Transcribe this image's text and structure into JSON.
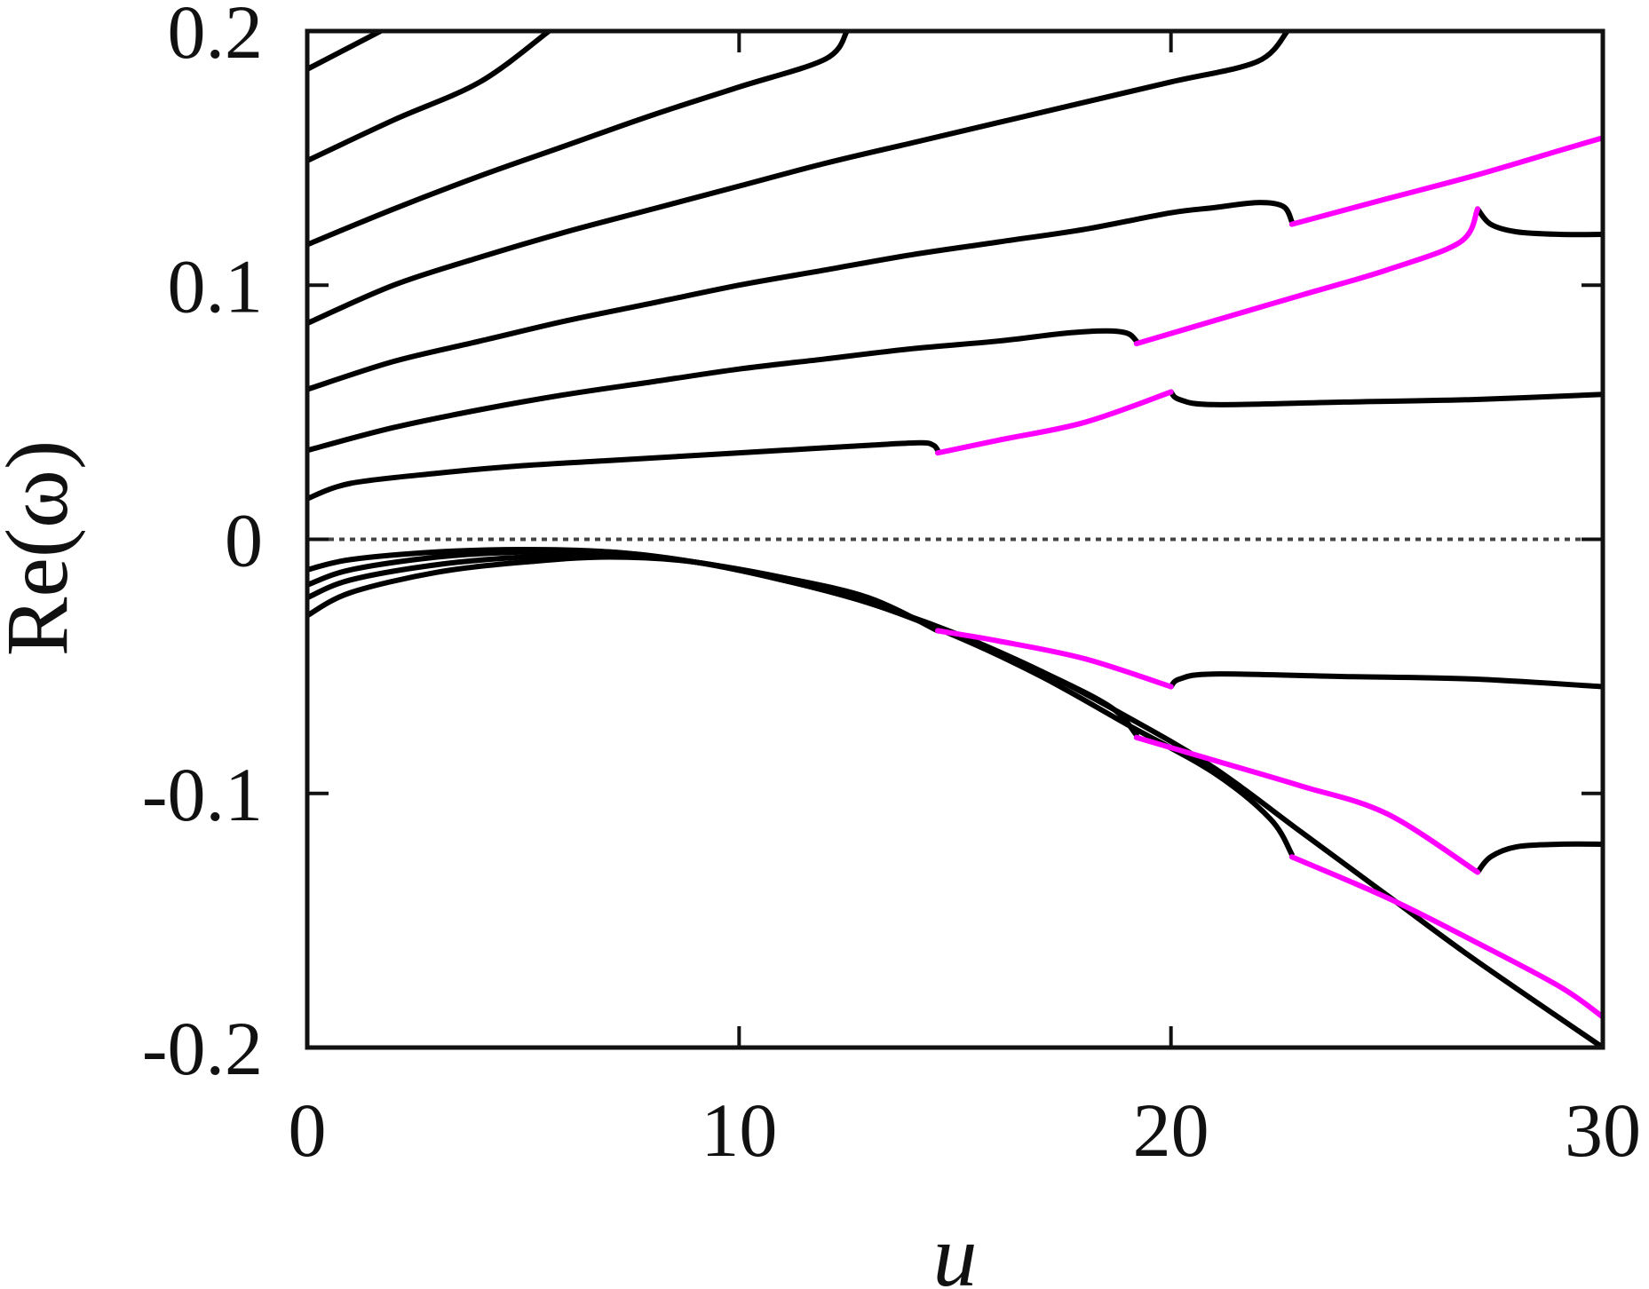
{
  "chart_data": {
    "type": "line",
    "title": "",
    "xlabel": "u",
    "ylabel": "Re(ω)",
    "xlim": [
      0,
      30
    ],
    "ylim": [
      -0.2,
      0.2
    ],
    "xticks": [
      0,
      10,
      20,
      30
    ],
    "xtick_labels": [
      "0",
      "10",
      "20",
      "30"
    ],
    "yticks": [
      -0.2,
      -0.1,
      0,
      0.1,
      0.2
    ],
    "ytick_labels": [
      "-0.2",
      "-0.1",
      "0",
      "0.1",
      "0.2"
    ],
    "grid": false,
    "legend": "none",
    "colors": {
      "black": "#000000",
      "magenta": "#ff00ff",
      "zero": "#444444"
    },
    "reference_line": {
      "y": 0,
      "style": "dotted"
    },
    "series": [
      {
        "color": "black",
        "points": [
          [
            0,
            0.185
          ],
          [
            1.7,
            0.2
          ]
        ]
      },
      {
        "color": "black",
        "points": [
          [
            0,
            0.149
          ],
          [
            2,
            0.165
          ],
          [
            4,
            0.18
          ],
          [
            5.6,
            0.2
          ]
        ]
      },
      {
        "color": "black",
        "points": [
          [
            0,
            0.116
          ],
          [
            2,
            0.13
          ],
          [
            4,
            0.143
          ],
          [
            6,
            0.155
          ],
          [
            8,
            0.167
          ],
          [
            10,
            0.178
          ],
          [
            12,
            0.189
          ],
          [
            12.5,
            0.2
          ]
        ]
      },
      {
        "color": "black",
        "points": [
          [
            0,
            0.085
          ],
          [
            2,
            0.1
          ],
          [
            4,
            0.111
          ],
          [
            6,
            0.121
          ],
          [
            8,
            0.13
          ],
          [
            10,
            0.139
          ],
          [
            12,
            0.148
          ],
          [
            14,
            0.156
          ],
          [
            16,
            0.164
          ],
          [
            18,
            0.172
          ],
          [
            20,
            0.18
          ],
          [
            22,
            0.188
          ],
          [
            22.7,
            0.2
          ]
        ]
      },
      {
        "color": "black",
        "points": [
          [
            0,
            0.059
          ],
          [
            2,
            0.07
          ],
          [
            4,
            0.078
          ],
          [
            6,
            0.086
          ],
          [
            8,
            0.093
          ],
          [
            10,
            0.1
          ],
          [
            12,
            0.106
          ],
          [
            14,
            0.112
          ],
          [
            16,
            0.117
          ],
          [
            18,
            0.122
          ],
          [
            20,
            0.1285
          ],
          [
            21,
            0.1305
          ],
          [
            22,
            0.1325
          ],
          [
            22.6,
            0.131
          ],
          [
            22.8,
            0.125
          ]
        ]
      },
      {
        "color": "magenta",
        "points": [
          [
            22.8,
            0.124
          ],
          [
            25,
            0.134
          ],
          [
            27,
            0.143
          ],
          [
            29,
            0.153
          ],
          [
            30,
            0.158
          ]
        ]
      },
      {
        "color": "black",
        "points": [
          [
            0,
            0.035
          ],
          [
            2,
            0.044
          ],
          [
            4,
            0.051
          ],
          [
            6,
            0.057
          ],
          [
            8,
            0.062
          ],
          [
            10,
            0.067
          ],
          [
            12,
            0.071
          ],
          [
            14,
            0.075
          ],
          [
            16,
            0.078
          ],
          [
            17.5,
            0.081
          ],
          [
            18.5,
            0.082
          ],
          [
            19,
            0.081
          ],
          [
            19.2,
            0.078
          ]
        ]
      },
      {
        "color": "magenta",
        "points": [
          [
            19.2,
            0.077
          ],
          [
            21,
            0.086
          ],
          [
            23,
            0.096
          ],
          [
            25,
            0.106
          ],
          [
            26.7,
            0.117
          ],
          [
            27.1,
            0.13
          ]
        ]
      },
      {
        "color": "black",
        "points": [
          [
            27.1,
            0.13
          ],
          [
            27.4,
            0.124
          ],
          [
            28,
            0.121
          ],
          [
            29,
            0.12
          ],
          [
            30,
            0.12
          ]
        ]
      },
      {
        "color": "black",
        "points": [
          [
            0,
            0.016
          ],
          [
            1,
            0.022
          ],
          [
            3,
            0.026
          ],
          [
            5,
            0.029
          ],
          [
            7,
            0.031
          ],
          [
            9,
            0.033
          ],
          [
            11,
            0.035
          ],
          [
            13,
            0.037
          ],
          [
            14.2,
            0.038
          ],
          [
            14.5,
            0.037
          ],
          [
            14.6,
            0.035
          ]
        ]
      },
      {
        "color": "magenta",
        "points": [
          [
            14.6,
            0.034
          ],
          [
            16,
            0.039
          ],
          [
            18,
            0.046
          ],
          [
            20,
            0.058
          ]
        ]
      },
      {
        "color": "black",
        "points": [
          [
            20,
            0.058
          ],
          [
            20.2,
            0.055
          ],
          [
            21,
            0.053
          ],
          [
            24,
            0.054
          ],
          [
            27,
            0.055
          ],
          [
            30,
            0.057
          ]
        ]
      },
      {
        "color": "black",
        "points": [
          [
            0,
            -0.012
          ],
          [
            1,
            -0.008
          ],
          [
            3,
            -0.005
          ],
          [
            5,
            -0.004
          ],
          [
            7,
            -0.005
          ],
          [
            9,
            -0.009
          ],
          [
            11,
            -0.015
          ],
          [
            13,
            -0.023
          ],
          [
            14.6,
            -0.036
          ]
        ]
      },
      {
        "color": "black",
        "points": [
          [
            0,
            -0.018
          ],
          [
            1,
            -0.012
          ],
          [
            3,
            -0.007
          ],
          [
            5,
            -0.005
          ],
          [
            7,
            -0.005
          ],
          [
            9,
            -0.009
          ],
          [
            11,
            -0.016
          ],
          [
            13,
            -0.025
          ],
          [
            15,
            -0.037
          ],
          [
            17,
            -0.052
          ],
          [
            18.6,
            -0.066
          ],
          [
            19.2,
            -0.077
          ]
        ]
      },
      {
        "color": "black",
        "points": [
          [
            0,
            -0.023
          ],
          [
            1,
            -0.016
          ],
          [
            3,
            -0.01
          ],
          [
            5,
            -0.007
          ],
          [
            7,
            -0.006
          ],
          [
            9,
            -0.009
          ],
          [
            11,
            -0.016
          ],
          [
            13,
            -0.025
          ],
          [
            15,
            -0.038
          ],
          [
            17,
            -0.054
          ],
          [
            19,
            -0.073
          ],
          [
            21,
            -0.092
          ],
          [
            22.3,
            -0.11
          ],
          [
            22.8,
            -0.124
          ]
        ]
      },
      {
        "color": "black",
        "points": [
          [
            0,
            -0.03
          ],
          [
            1,
            -0.021
          ],
          [
            3,
            -0.013
          ],
          [
            5,
            -0.009
          ],
          [
            7,
            -0.007
          ],
          [
            9,
            -0.009
          ],
          [
            11,
            -0.016
          ],
          [
            13,
            -0.025
          ],
          [
            15,
            -0.037
          ],
          [
            17,
            -0.052
          ],
          [
            19,
            -0.07
          ],
          [
            21,
            -0.09
          ],
          [
            23,
            -0.115
          ],
          [
            25,
            -0.14
          ],
          [
            27,
            -0.165
          ],
          [
            30,
            -0.2
          ]
        ]
      },
      {
        "color": "magenta",
        "points": [
          [
            14.6,
            -0.036
          ],
          [
            16,
            -0.04
          ],
          [
            18,
            -0.047
          ],
          [
            20,
            -0.058
          ]
        ]
      },
      {
        "color": "black",
        "points": [
          [
            20,
            -0.058
          ],
          [
            20.2,
            -0.055
          ],
          [
            21,
            -0.053
          ],
          [
            24,
            -0.054
          ],
          [
            27,
            -0.055
          ],
          [
            30,
            -0.058
          ]
        ]
      },
      {
        "color": "magenta",
        "points": [
          [
            19.2,
            -0.078
          ],
          [
            21,
            -0.087
          ],
          [
            23,
            -0.097
          ],
          [
            25,
            -0.108
          ],
          [
            27.1,
            -0.131
          ]
        ]
      },
      {
        "color": "black",
        "points": [
          [
            27.1,
            -0.131
          ],
          [
            27.4,
            -0.125
          ],
          [
            28,
            -0.121
          ],
          [
            29,
            -0.12
          ],
          [
            30,
            -0.12
          ]
        ]
      },
      {
        "color": "magenta",
        "points": [
          [
            22.8,
            -0.125
          ],
          [
            25,
            -0.141
          ],
          [
            27,
            -0.158
          ],
          [
            29,
            -0.176
          ],
          [
            30,
            -0.188
          ]
        ]
      }
    ]
  }
}
